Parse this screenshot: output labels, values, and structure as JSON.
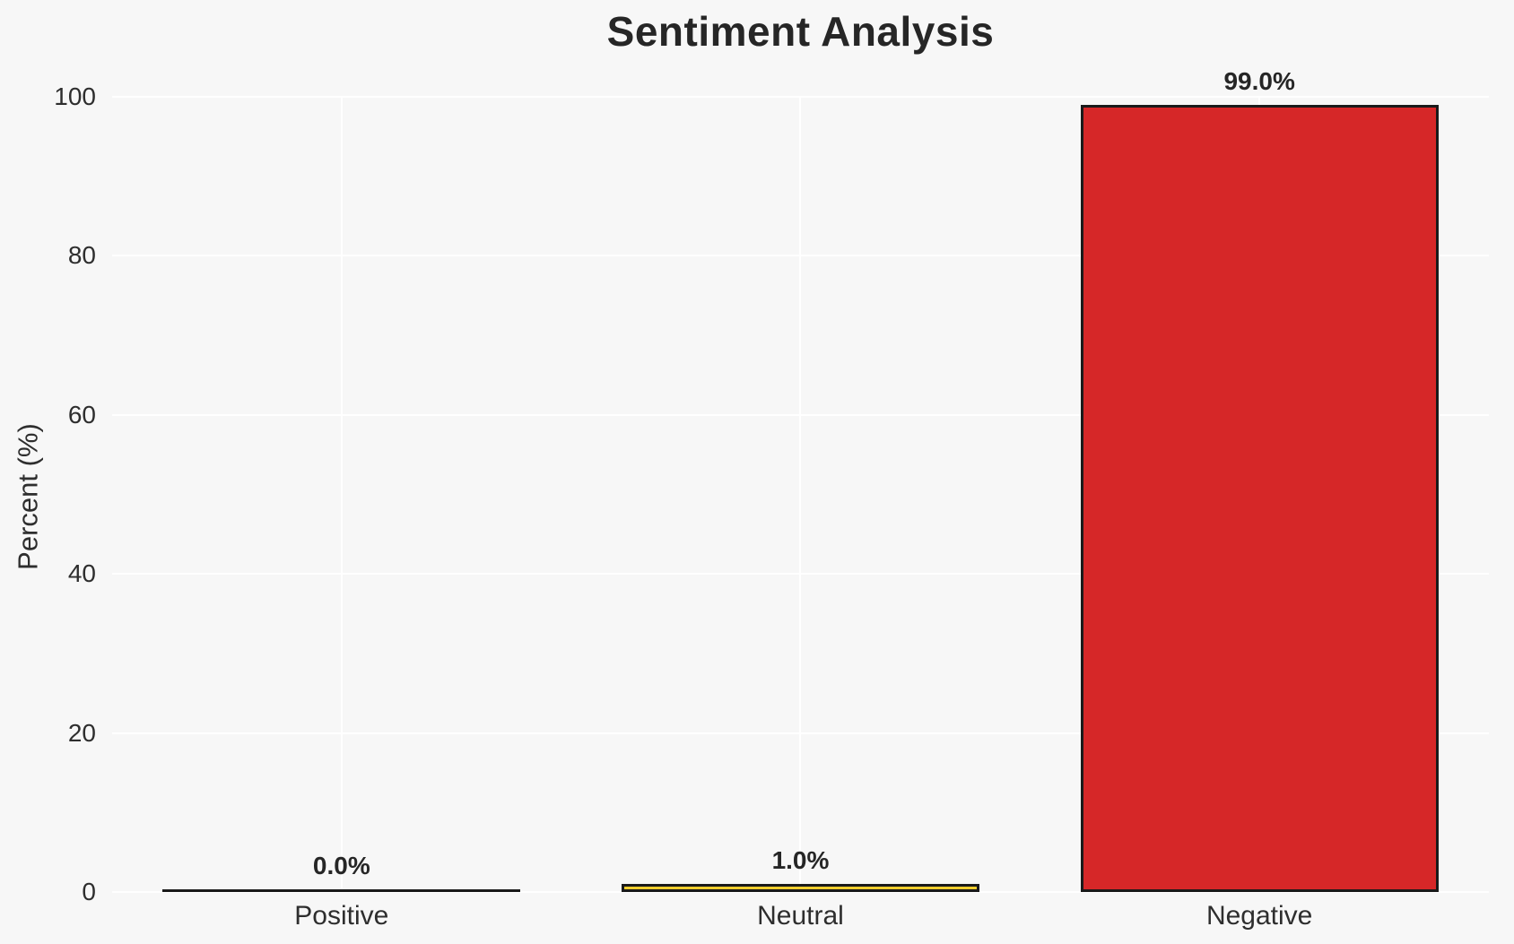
{
  "chart_data": {
    "type": "bar",
    "title": "Sentiment Analysis",
    "xlabel": "",
    "ylabel": "Percent (%)",
    "categories": [
      "Positive",
      "Neutral",
      "Negative"
    ],
    "values": [
      0.0,
      1.0,
      99.0
    ],
    "bar_labels": [
      "0.0%",
      "1.0%",
      "99.0%"
    ],
    "ylim": [
      0,
      100
    ],
    "yticks": [
      0,
      20,
      40,
      60,
      80,
      100
    ],
    "ytick_labels": [
      "0",
      "20",
      "40",
      "60",
      "80",
      "100"
    ],
    "grid": true,
    "legend_position": "none",
    "colors": {
      "background": "#F7F7F7",
      "gridline": "#FFFFFF",
      "bar_fills": [
        null,
        "#F5CE2E",
        "#D62728"
      ],
      "bar_edge": "#1A1A1A",
      "text": "#262626"
    }
  }
}
